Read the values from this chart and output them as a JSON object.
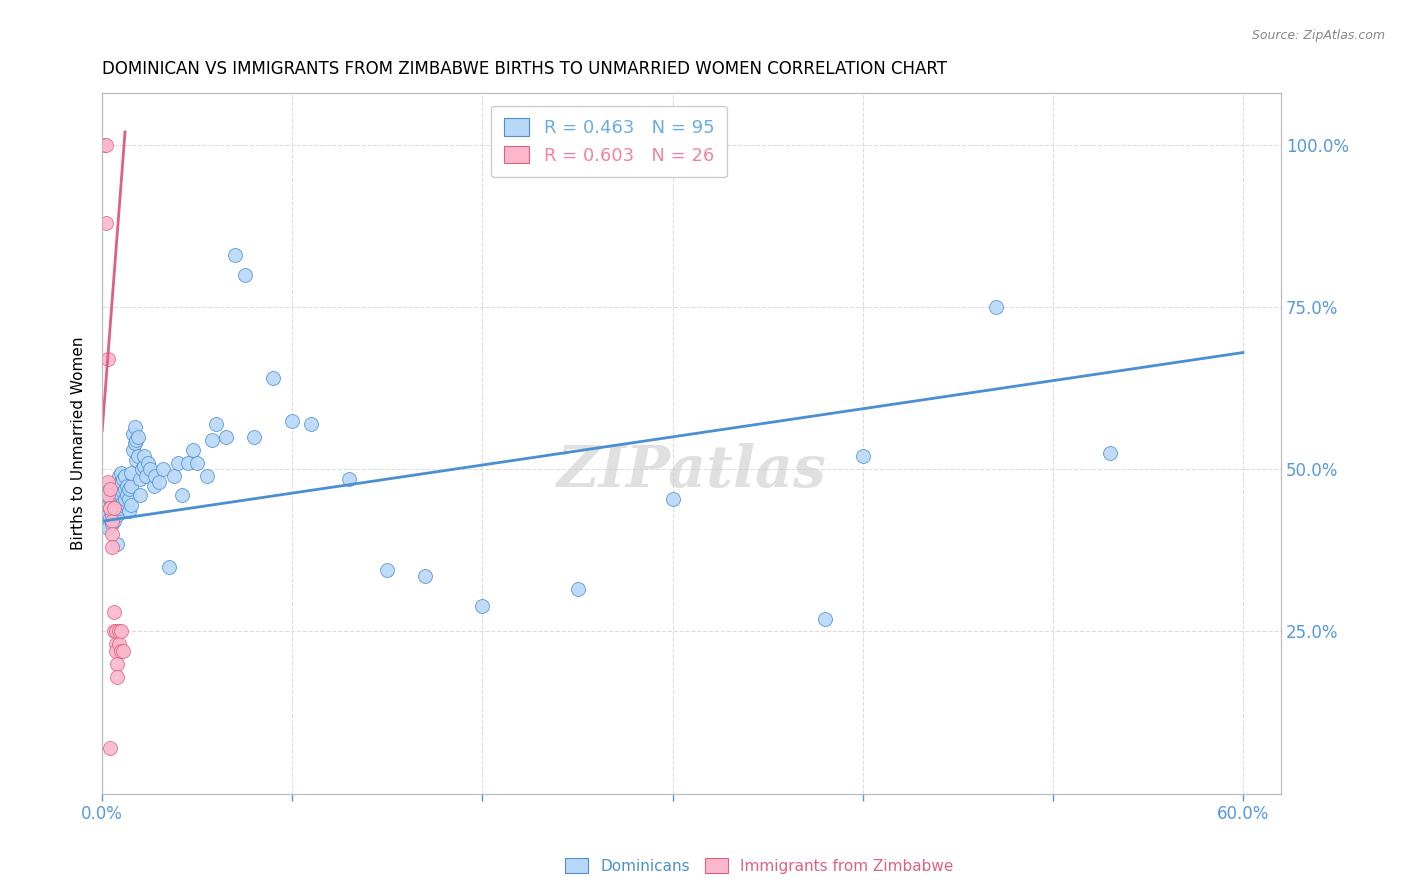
{
  "title": "DOMINICAN VS IMMIGRANTS FROM ZIMBABWE BIRTHS TO UNMARRIED WOMEN CORRELATION CHART",
  "source": "Source: ZipAtlas.com",
  "ylabel": "Births to Unmarried Women",
  "xlim": [
    0.0,
    0.62
  ],
  "ylim": [
    0.0,
    1.08
  ],
  "legend_entries": [
    {
      "label": "R = 0.463   N = 95",
      "color": "#6aade4"
    },
    {
      "label": "R = 0.603   N = 26",
      "color": "#f084a0"
    }
  ],
  "dominicans_scatter": [
    [
      0.001,
      0.43
    ],
    [
      0.002,
      0.415
    ],
    [
      0.002,
      0.44
    ],
    [
      0.002,
      0.45
    ],
    [
      0.003,
      0.41
    ],
    [
      0.003,
      0.43
    ],
    [
      0.003,
      0.445
    ],
    [
      0.003,
      0.46
    ],
    [
      0.004,
      0.425
    ],
    [
      0.004,
      0.44
    ],
    [
      0.004,
      0.455
    ],
    [
      0.004,
      0.47
    ],
    [
      0.005,
      0.415
    ],
    [
      0.005,
      0.43
    ],
    [
      0.005,
      0.445
    ],
    [
      0.005,
      0.46
    ],
    [
      0.006,
      0.42
    ],
    [
      0.006,
      0.435
    ],
    [
      0.006,
      0.45
    ],
    [
      0.006,
      0.465
    ],
    [
      0.007,
      0.43
    ],
    [
      0.007,
      0.445
    ],
    [
      0.007,
      0.46
    ],
    [
      0.007,
      0.475
    ],
    [
      0.008,
      0.385
    ],
    [
      0.008,
      0.43
    ],
    [
      0.008,
      0.45
    ],
    [
      0.008,
      0.465
    ],
    [
      0.009,
      0.44
    ],
    [
      0.009,
      0.46
    ],
    [
      0.009,
      0.475
    ],
    [
      0.009,
      0.49
    ],
    [
      0.01,
      0.445
    ],
    [
      0.01,
      0.46
    ],
    [
      0.01,
      0.48
    ],
    [
      0.01,
      0.495
    ],
    [
      0.011,
      0.45
    ],
    [
      0.011,
      0.465
    ],
    [
      0.011,
      0.485
    ],
    [
      0.012,
      0.455
    ],
    [
      0.012,
      0.47
    ],
    [
      0.012,
      0.49
    ],
    [
      0.013,
      0.46
    ],
    [
      0.013,
      0.475
    ],
    [
      0.014,
      0.435
    ],
    [
      0.014,
      0.455
    ],
    [
      0.014,
      0.47
    ],
    [
      0.015,
      0.445
    ],
    [
      0.015,
      0.475
    ],
    [
      0.015,
      0.495
    ],
    [
      0.016,
      0.53
    ],
    [
      0.016,
      0.555
    ],
    [
      0.017,
      0.54
    ],
    [
      0.017,
      0.565
    ],
    [
      0.018,
      0.515
    ],
    [
      0.018,
      0.545
    ],
    [
      0.019,
      0.52
    ],
    [
      0.019,
      0.55
    ],
    [
      0.02,
      0.46
    ],
    [
      0.02,
      0.485
    ],
    [
      0.021,
      0.5
    ],
    [
      0.022,
      0.505
    ],
    [
      0.022,
      0.52
    ],
    [
      0.023,
      0.49
    ],
    [
      0.024,
      0.51
    ],
    [
      0.025,
      0.5
    ],
    [
      0.027,
      0.475
    ],
    [
      0.028,
      0.49
    ],
    [
      0.03,
      0.48
    ],
    [
      0.032,
      0.5
    ],
    [
      0.035,
      0.35
    ],
    [
      0.038,
      0.49
    ],
    [
      0.04,
      0.51
    ],
    [
      0.042,
      0.46
    ],
    [
      0.045,
      0.51
    ],
    [
      0.048,
      0.53
    ],
    [
      0.05,
      0.51
    ],
    [
      0.055,
      0.49
    ],
    [
      0.058,
      0.545
    ],
    [
      0.06,
      0.57
    ],
    [
      0.065,
      0.55
    ],
    [
      0.07,
      0.83
    ],
    [
      0.075,
      0.8
    ],
    [
      0.08,
      0.55
    ],
    [
      0.09,
      0.64
    ],
    [
      0.1,
      0.575
    ],
    [
      0.11,
      0.57
    ],
    [
      0.13,
      0.485
    ],
    [
      0.15,
      0.345
    ],
    [
      0.17,
      0.335
    ],
    [
      0.2,
      0.29
    ],
    [
      0.25,
      0.315
    ],
    [
      0.3,
      0.455
    ],
    [
      0.38,
      0.27
    ],
    [
      0.4,
      0.52
    ],
    [
      0.47,
      0.75
    ],
    [
      0.53,
      0.525
    ]
  ],
  "zimbabwe_scatter": [
    [
      0.001,
      1.0
    ],
    [
      0.002,
      1.0
    ],
    [
      0.002,
      0.88
    ],
    [
      0.003,
      0.67
    ],
    [
      0.003,
      0.48
    ],
    [
      0.003,
      0.46
    ],
    [
      0.004,
      0.44
    ],
    [
      0.004,
      0.47
    ],
    [
      0.004,
      0.44
    ],
    [
      0.005,
      0.42
    ],
    [
      0.005,
      0.4
    ],
    [
      0.005,
      0.38
    ],
    [
      0.006,
      0.44
    ],
    [
      0.006,
      0.28
    ],
    [
      0.006,
      0.25
    ],
    [
      0.007,
      0.23
    ],
    [
      0.007,
      0.25
    ],
    [
      0.007,
      0.22
    ],
    [
      0.008,
      0.2
    ],
    [
      0.008,
      0.18
    ],
    [
      0.009,
      0.25
    ],
    [
      0.009,
      0.23
    ],
    [
      0.01,
      0.22
    ],
    [
      0.01,
      0.25
    ],
    [
      0.011,
      0.22
    ],
    [
      0.004,
      0.07
    ]
  ],
  "blue_line_x": [
    0.0,
    0.6
  ],
  "blue_line_y": [
    0.42,
    0.68
  ],
  "pink_line_x": [
    0.0,
    0.012
  ],
  "pink_line_y": [
    0.56,
    1.02
  ],
  "dot_color_blue": "#b8d8f8",
  "dot_color_pink": "#fbb8cc",
  "line_color_blue": "#4a90d0",
  "line_color_pink": "#e06080",
  "watermark": "ZIPatlas",
  "title_fontsize": 12,
  "axis_label_color": "#5599dd",
  "background_color": "#ffffff",
  "grid_color": "#dddddd",
  "ytick_vals": [
    0.25,
    0.5,
    0.75,
    1.0
  ],
  "xtick_shown": [
    0.0,
    0.6
  ],
  "xtick_grid": [
    0.0,
    0.1,
    0.2,
    0.3,
    0.4,
    0.5,
    0.6
  ]
}
